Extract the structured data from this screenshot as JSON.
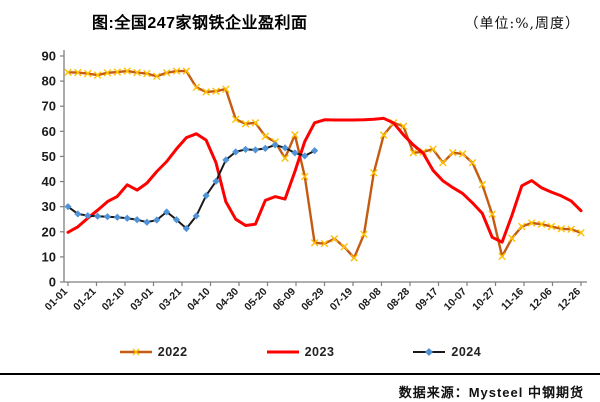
{
  "header": {
    "title": "图:全国247家钢铁企业盈利面",
    "unit_note": "（单位:%,周度）"
  },
  "footer": {
    "source": "数据来源：Mysteel  中钢期货"
  },
  "chart_data": {
    "type": "line",
    "title": "图:全国247家钢铁企业盈利面",
    "unit": "%, weekly",
    "grid": false,
    "legend_position": "bottom",
    "ylim": [
      0,
      90
    ],
    "yticks": [
      0,
      10,
      20,
      30,
      40,
      50,
      60,
      70,
      80,
      90
    ],
    "x_labels": [
      "01-01",
      "01-21",
      "02-10",
      "03-01",
      "03-21",
      "04-10",
      "04-30",
      "05-20",
      "06-09",
      "06-29",
      "07-19",
      "08-08",
      "08-28",
      "09-17",
      "10-07",
      "10-27",
      "11-16",
      "12-06",
      "12-26"
    ],
    "weeks_per_year": 53,
    "axis_color": "#7f7f7f",
    "series": [
      {
        "name": "2022",
        "color": "#C55A11",
        "marker": "x-cross",
        "marker_color": "#FFC000",
        "line_width": 2.4,
        "values": [
          83.5,
          83.4,
          83.0,
          82.4,
          83.3,
          83.6,
          84.0,
          83.4,
          83.0,
          81.9,
          83.3,
          84.0,
          84.0,
          77.5,
          75.7,
          76.0,
          76.8,
          64.8,
          63.0,
          63.4,
          58.0,
          55.8,
          49.3,
          58.6,
          42.0,
          15.6,
          15.3,
          17.2,
          14.0,
          9.6,
          19.0,
          43.5,
          58.5,
          63.4,
          62.0,
          51.5,
          51.8,
          52.9,
          47.5,
          51.5,
          51.0,
          47.5,
          38.8,
          27.0,
          10.2,
          17.4,
          22.1,
          23.5,
          23.0,
          22.1,
          21.2,
          21.0,
          19.6
        ]
      },
      {
        "name": "2023",
        "color": "#FF0000",
        "marker": "none",
        "marker_color": "#FF0000",
        "line_width": 3,
        "values": [
          19.8,
          22.0,
          25.4,
          28.6,
          32.0,
          34.1,
          38.7,
          36.6,
          39.4,
          44.0,
          48.0,
          53.0,
          57.5,
          59.0,
          56.5,
          47.5,
          32.0,
          25.0,
          22.5,
          23.0,
          32.5,
          34.0,
          33.0,
          44.0,
          56.0,
          63.4,
          64.6,
          64.5,
          64.5,
          64.5,
          64.6,
          64.8,
          65.2,
          63.3,
          58.6,
          54.6,
          51.3,
          44.5,
          40.3,
          37.6,
          35.3,
          31.5,
          27.3,
          17.8,
          15.9,
          26.5,
          38.3,
          40.4,
          37.5,
          35.8,
          34.3,
          32.3,
          28.4
        ]
      },
      {
        "name": "2024",
        "color": "#1a1a1a",
        "marker": "diamond",
        "marker_color": "#4F93D8",
        "line_width": 2,
        "values": [
          30.0,
          27.1,
          26.4,
          26.2,
          26.0,
          25.8,
          25.4,
          24.8,
          23.8,
          24.7,
          27.9,
          24.8,
          21.3,
          26.3,
          34.4,
          40.1,
          48.6,
          51.8,
          52.8,
          52.6,
          53.2,
          54.6,
          53.4,
          51.4,
          50.2,
          52.3
        ]
      }
    ]
  }
}
